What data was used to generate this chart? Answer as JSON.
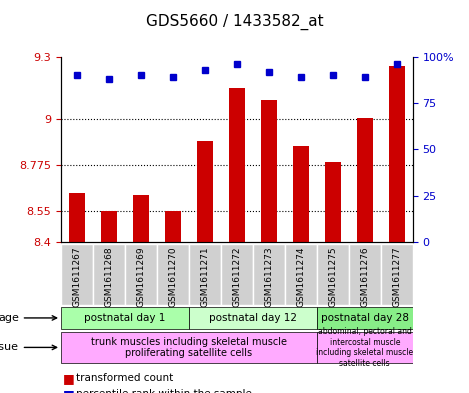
{
  "title": "GDS5660 / 1433582_at",
  "samples": [
    "GSM1611267",
    "GSM1611268",
    "GSM1611269",
    "GSM1611270",
    "GSM1611271",
    "GSM1611272",
    "GSM1611273",
    "GSM1611274",
    "GSM1611275",
    "GSM1611276",
    "GSM1611277"
  ],
  "transformed_count": [
    8.636,
    8.548,
    8.627,
    8.548,
    8.893,
    9.147,
    9.09,
    8.864,
    8.787,
    9.005,
    9.258
  ],
  "percentile_rank": [
    90,
    88,
    90,
    89,
    93,
    96,
    92,
    89,
    90,
    89,
    96
  ],
  "y_min": 8.4,
  "y_max": 9.3,
  "y_ticks": [
    8.4,
    8.55,
    8.775,
    9.0,
    9.3
  ],
  "y_tick_labels": [
    "8.4",
    "8.55",
    "8.775",
    "9",
    "9.3"
  ],
  "y2_ticks": [
    0,
    25,
    50,
    75,
    100
  ],
  "y2_tick_labels": [
    "0",
    "25",
    "50",
    "75",
    "100%"
  ],
  "bar_color": "#cc0000",
  "dot_color": "#0000cc",
  "age_groups": [
    {
      "label": "postnatal day 1",
      "start": 0,
      "end": 4,
      "color": "#aaffaa"
    },
    {
      "label": "postnatal day 12",
      "start": 4,
      "end": 8,
      "color": "#ccffcc"
    },
    {
      "label": "postnatal day 28",
      "start": 8,
      "end": 11,
      "color": "#88ee88"
    }
  ],
  "tissue_groups": [
    {
      "label": "trunk muscles including skeletal muscle\nproliferating satellite cells",
      "start": 0,
      "end": 8,
      "color": "#ffaaff"
    },
    {
      "label": "abdominal, pectoral and\nintercostal muscle\nincluding skeletal muscle\nsatellite cells",
      "start": 8,
      "end": 11,
      "color": "#ffaaff"
    }
  ],
  "grid_color": "#000000",
  "background_color": "#ffffff",
  "plot_bg_color": "#ffffff",
  "axis_label_color_left": "#cc0000",
  "axis_label_color_right": "#0000cc"
}
